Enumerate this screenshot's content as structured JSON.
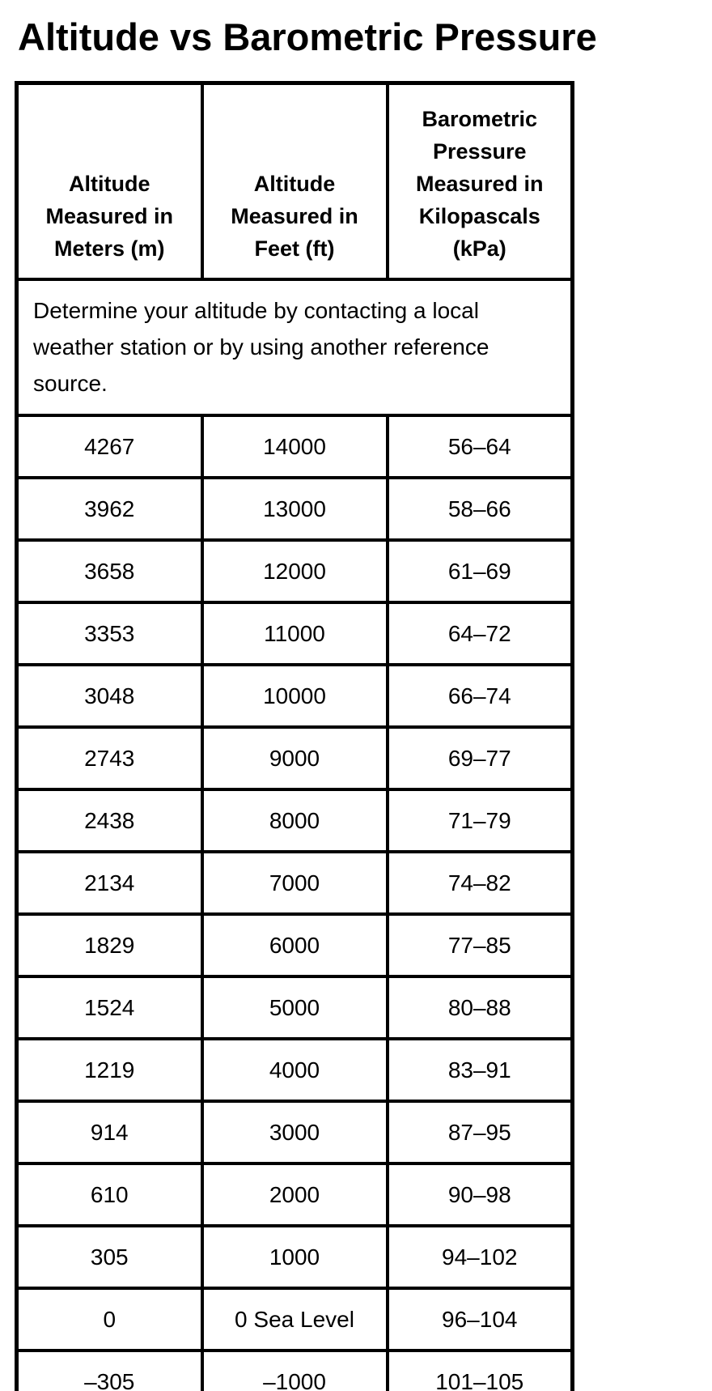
{
  "title": "Altitude vs Barometric Pressure",
  "colors": {
    "background": "#ffffff",
    "text": "#000000",
    "border": "#000000"
  },
  "table": {
    "headers": [
      {
        "lines": [
          "Altitude",
          "Measured in",
          "Meters (m)"
        ]
      },
      {
        "lines": [
          "Altitude",
          "Measured in",
          "Feet (ft)"
        ]
      },
      {
        "lines": [
          "Barometric",
          "Pressure",
          "Measured in",
          "Kilopascals",
          "(kPa)"
        ]
      }
    ],
    "note_lines": [
      "Determine your altitude by contacting a local",
      "weather station or by using another reference",
      "source."
    ],
    "rows": [
      [
        "4267",
        "14000",
        "56–64"
      ],
      [
        "3962",
        "13000",
        "58–66"
      ],
      [
        "3658",
        "12000",
        "61–69"
      ],
      [
        "3353",
        "11000",
        "64–72"
      ],
      [
        "3048",
        "10000",
        "66–74"
      ],
      [
        "2743",
        "9000",
        "69–77"
      ],
      [
        "2438",
        "8000",
        "71–79"
      ],
      [
        "2134",
        "7000",
        "74–82"
      ],
      [
        "1829",
        "6000",
        "77–85"
      ],
      [
        "1524",
        "5000",
        "80–88"
      ],
      [
        "1219",
        "4000",
        "83–91"
      ],
      [
        "914",
        "3000",
        "87–95"
      ],
      [
        "610",
        "2000",
        "90–98"
      ],
      [
        "305",
        "1000",
        "94–102"
      ],
      [
        "0",
        "0 Sea Level",
        "96–104"
      ],
      [
        "–305",
        "–1000",
        "101–105"
      ]
    ]
  }
}
